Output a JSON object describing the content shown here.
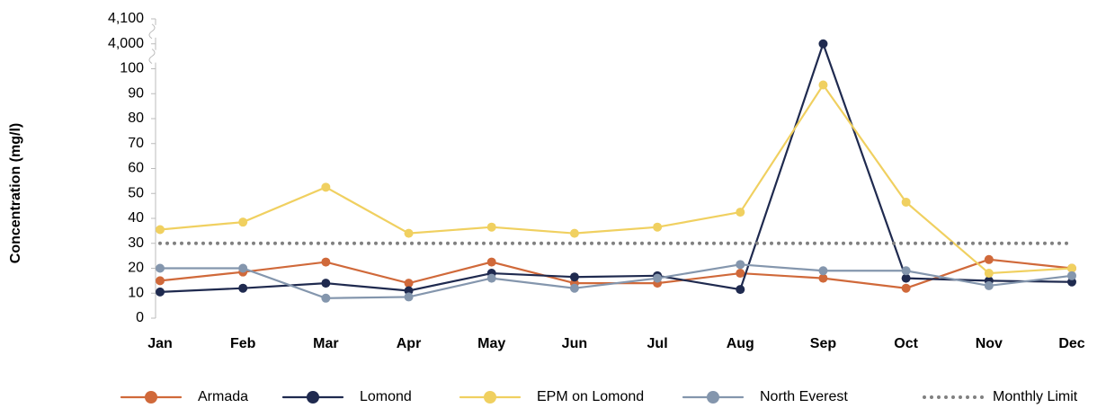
{
  "chart_data": {
    "type": "line",
    "y_label": "Concentration (mg/l)",
    "categories": [
      "Jan",
      "Feb",
      "Mar",
      "Apr",
      "May",
      "Jun",
      "Jul",
      "Aug",
      "Sep",
      "Oct",
      "Nov",
      "Dec"
    ],
    "series": [
      {
        "name": "Armada",
        "color": "#d0693a",
        "marker": true,
        "values": [
          15,
          18.5,
          22.5,
          14,
          22.5,
          14,
          14,
          18,
          16,
          12,
          23.5,
          20
        ]
      },
      {
        "name": "Lomond",
        "color": "#1f2a4f",
        "marker": true,
        "values": [
          10.5,
          12,
          14,
          11,
          18,
          16.5,
          17,
          11.5,
          4000,
          16,
          15,
          14.5
        ]
      },
      {
        "name": "EPM on Lomond",
        "color": "#f0d060",
        "marker": true,
        "values": [
          35.5,
          38.5,
          52.5,
          34,
          36.5,
          34,
          36.5,
          42.5,
          93.5,
          46.5,
          18,
          20
        ]
      },
      {
        "name": "North Everest",
        "color": "#8496ad",
        "marker": true,
        "values": [
          20,
          20,
          8,
          8.5,
          16,
          12,
          16,
          21.5,
          19,
          19,
          13,
          17
        ]
      },
      {
        "name": "Monthly Limit",
        "color": "#808080",
        "marker": false,
        "dotted": true,
        "values": [
          30,
          30,
          30,
          30,
          30,
          30,
          30,
          30,
          30,
          30,
          30,
          30
        ]
      }
    ],
    "ylim": [
      0,
      4100
    ],
    "yticks": [
      0,
      10,
      20,
      30,
      40,
      50,
      60,
      70,
      80,
      90,
      100,
      {
        "value": 4000,
        "label": "4,000"
      },
      {
        "value": 4100,
        "label": "4,100"
      }
    ],
    "y_axis_break": true,
    "grid": false,
    "legend": "bottom"
  }
}
